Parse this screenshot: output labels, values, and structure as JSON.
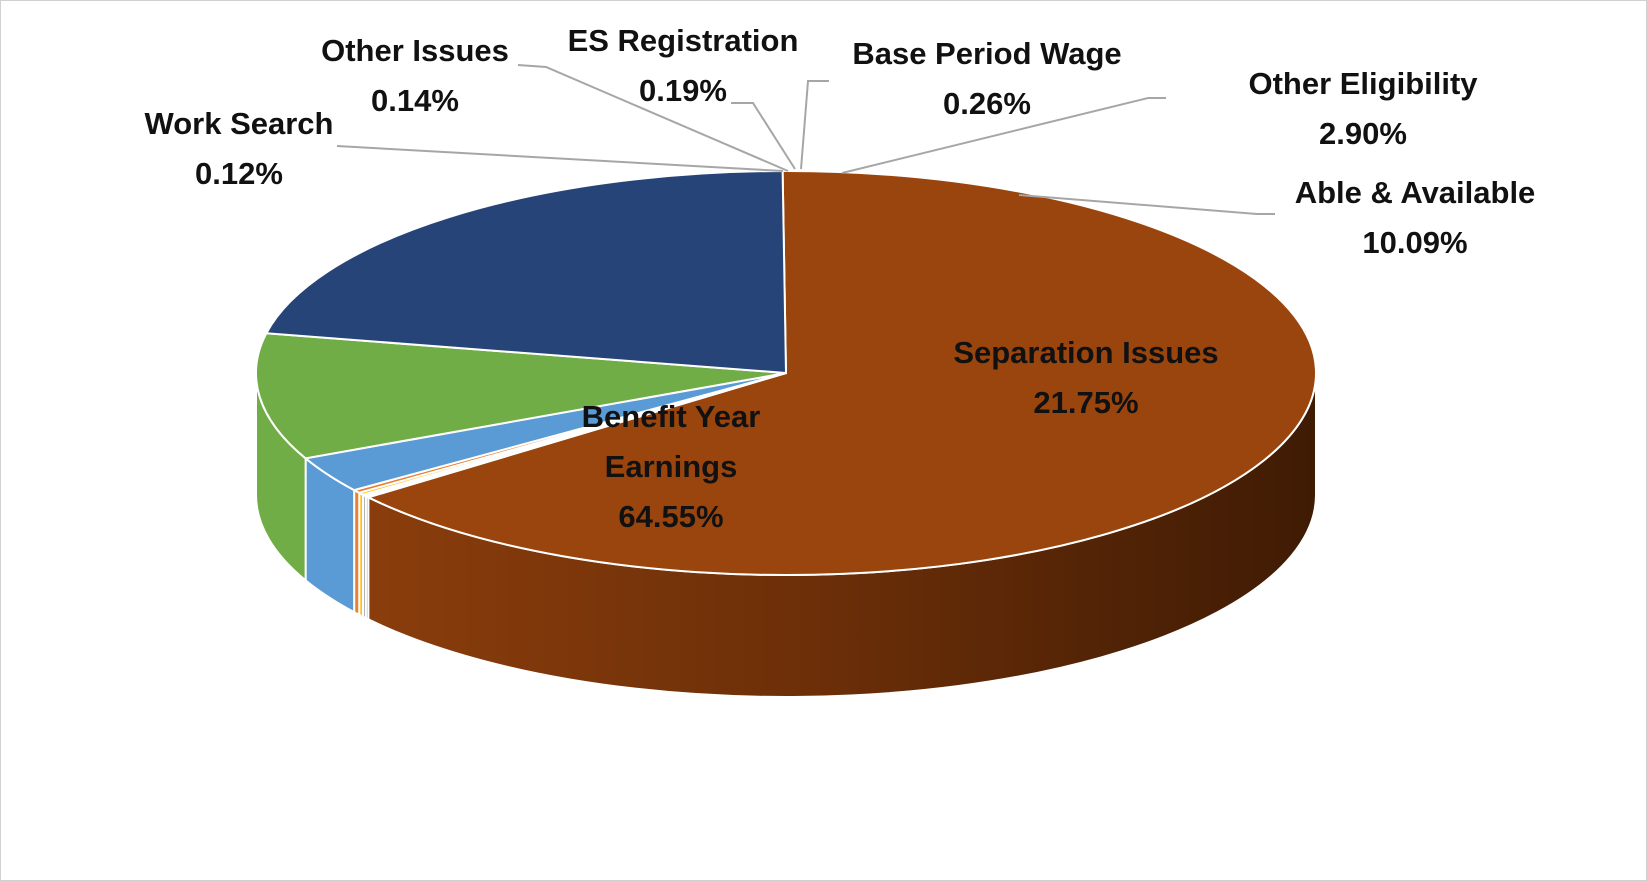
{
  "chart_data": {
    "type": "pie",
    "style": "3d",
    "title": "",
    "slices": [
      {
        "name": "Benefit Year Earnings",
        "label_lines": [
          "Benefit Year",
          "Earnings"
        ],
        "value": 64.55,
        "value_label": "64.55%",
        "color": "#9A450D",
        "label_position": "inside"
      },
      {
        "name": "Work Search",
        "label_lines": [
          "Work Search"
        ],
        "value": 0.12,
        "value_label": "0.12%",
        "color": "#7F7F7F",
        "label_position": "outside"
      },
      {
        "name": "Other Issues",
        "label_lines": [
          "Other Issues"
        ],
        "value": 0.14,
        "value_label": "0.14%",
        "color": "#A5A5A5",
        "label_position": "outside"
      },
      {
        "name": "ES Registration",
        "label_lines": [
          "ES Registration"
        ],
        "value": 0.19,
        "value_label": "0.19%",
        "color": "#FFC000",
        "label_position": "outside"
      },
      {
        "name": "Base Period Wage",
        "label_lines": [
          "Base Period Wage"
        ],
        "value": 0.26,
        "value_label": "0.26%",
        "color": "#ED7D31",
        "label_position": "outside"
      },
      {
        "name": "Other Eligibility",
        "label_lines": [
          "Other Eligibility"
        ],
        "value": 2.9,
        "value_label": "2.90%",
        "color": "#5B9BD5",
        "label_position": "outside"
      },
      {
        "name": "Able & Available",
        "label_lines": [
          "Able & Available"
        ],
        "value": 10.09,
        "value_label": "10.09%",
        "color": "#70AD47",
        "label_position": "outside"
      },
      {
        "name": "Separation Issues",
        "label_lines": [
          "Separation Issues"
        ],
        "value": 21.75,
        "value_label": "21.75%",
        "color": "#264478",
        "label_position": "inside"
      }
    ]
  }
}
